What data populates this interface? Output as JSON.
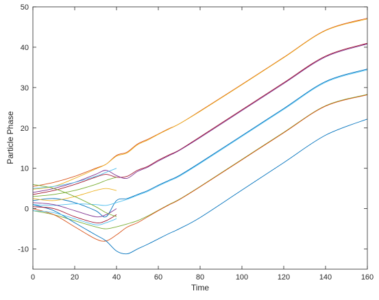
{
  "chart_data": {
    "type": "line",
    "title": "",
    "xlabel": "Time",
    "ylabel": "Particle Phase",
    "xlim": [
      0,
      160
    ],
    "ylim": [
      -15,
      50
    ],
    "xticks": [
      0,
      20,
      40,
      60,
      80,
      100,
      120,
      140,
      160
    ],
    "yticks": [
      -10,
      0,
      10,
      20,
      30,
      40,
      50
    ],
    "grid": false,
    "legend": "none",
    "colors": [
      "#0072bd",
      "#d95319",
      "#edb120",
      "#7e2f8e",
      "#77ac30",
      "#4dbeee",
      "#a2142f"
    ],
    "series": [
      {
        "color": "#d95319",
        "x": [
          0,
          10,
          20,
          30,
          35,
          40,
          45,
          50,
          55,
          60,
          65,
          70,
          80,
          100,
          120,
          140,
          160
        ],
        "y": [
          5.5,
          6.5,
          8,
          10,
          11,
          13.2,
          14,
          16,
          17.2,
          18.5,
          19.8,
          21,
          24.2,
          30.8,
          37.5,
          44.2,
          47.2
        ]
      },
      {
        "color": "#edb120",
        "x": [
          0,
          10,
          20,
          30,
          35,
          40,
          45,
          50,
          55,
          60,
          65,
          70,
          80,
          100,
          120,
          140,
          160
        ],
        "y": [
          4.8,
          5.5,
          7.5,
          9.8,
          11,
          13,
          13.8,
          15.8,
          17,
          18.4,
          19.7,
          21,
          24.1,
          30.7,
          37.4,
          44.1,
          47
        ]
      },
      {
        "color": "#a2142f",
        "x": [
          0,
          10,
          20,
          30,
          35,
          40,
          45,
          50,
          55,
          60,
          65,
          70,
          80,
          100,
          120,
          140,
          160
        ],
        "y": [
          3.5,
          4.5,
          6,
          7.8,
          8.5,
          7.8,
          8,
          9.5,
          10.5,
          12,
          13.3,
          14.5,
          17.8,
          24.5,
          31.2,
          37.8,
          41
        ]
      },
      {
        "color": "#7e2f8e",
        "x": [
          0,
          10,
          20,
          30,
          35,
          40,
          45,
          50,
          55,
          60,
          65,
          70,
          80,
          100,
          120,
          140,
          160
        ],
        "y": [
          4,
          5,
          6.5,
          8.5,
          9.5,
          8.2,
          7.5,
          9.2,
          10.3,
          11.8,
          13.1,
          14.4,
          17.6,
          24.3,
          31,
          37.6,
          40.8
        ]
      },
      {
        "color": "#0072bd",
        "x": [
          0,
          10,
          20,
          30,
          35,
          40,
          45,
          50,
          55,
          60,
          65,
          70,
          80,
          100,
          120,
          140,
          160
        ],
        "y": [
          2,
          2.5,
          1.5,
          -0.5,
          -2,
          2,
          2.5,
          3.5,
          4.5,
          5.8,
          7,
          8.2,
          11.4,
          18.1,
          24.8,
          31.5,
          34.6
        ]
      },
      {
        "color": "#4dbeee",
        "x": [
          0,
          10,
          20,
          30,
          35,
          40,
          45,
          50,
          55,
          60,
          65,
          70,
          80,
          100,
          120,
          140,
          160
        ],
        "y": [
          1,
          0.8,
          1.2,
          1,
          0.8,
          1.5,
          2.3,
          3.3,
          4.3,
          5.6,
          6.8,
          8,
          11.2,
          17.9,
          24.6,
          31.3,
          34.4
        ]
      },
      {
        "color": "#77ac30",
        "x": [
          0,
          10,
          20,
          30,
          35,
          40,
          45,
          50,
          55,
          60,
          65,
          70,
          80,
          100,
          120,
          140,
          160
        ],
        "y": [
          -0.5,
          -1.5,
          -3,
          -4.5,
          -5,
          -4.5,
          -3.8,
          -3,
          -1.8,
          -0.4,
          1,
          2.3,
          5.5,
          12.2,
          18.9,
          25.5,
          28.3
        ]
      },
      {
        "color": "#d95319",
        "x": [
          0,
          10,
          20,
          30,
          35,
          40,
          45,
          50,
          55,
          60,
          65,
          70,
          80,
          100,
          120,
          140,
          160
        ],
        "y": [
          0,
          -1.5,
          -4.5,
          -7.5,
          -8,
          -6.5,
          -4.6,
          -3.5,
          -2,
          -0.5,
          0.9,
          2.2,
          5.4,
          12.1,
          18.8,
          25.4,
          28.2
        ]
      },
      {
        "color": "#0072bd",
        "x": [
          0,
          10,
          20,
          30,
          35,
          40,
          45,
          50,
          55,
          60,
          65,
          70,
          80,
          100,
          120,
          140,
          160
        ],
        "y": [
          1,
          -0.5,
          -3.5,
          -6.5,
          -8,
          -10.5,
          -11.2,
          -10,
          -8.8,
          -7.5,
          -6.2,
          -5,
          -2.2,
          4.6,
          11.4,
          18.2,
          22.2
        ]
      },
      {
        "color": "#4dbeee",
        "x": [
          0,
          10,
          20,
          30,
          35,
          40
        ],
        "y": [
          5,
          5.5,
          6.5,
          8,
          9,
          10
        ]
      },
      {
        "color": "#77ac30",
        "x": [
          0,
          10,
          20,
          30,
          35,
          40
        ],
        "y": [
          3,
          3.5,
          4.5,
          6,
          7,
          7.8
        ]
      },
      {
        "color": "#edb120",
        "x": [
          0,
          10,
          20,
          30,
          35,
          40
        ],
        "y": [
          2.5,
          2,
          3,
          4.5,
          5,
          4.5
        ]
      },
      {
        "color": "#7e2f8e",
        "x": [
          0,
          10,
          20,
          30,
          35,
          40
        ],
        "y": [
          1.5,
          1,
          -0.5,
          -2,
          -1.5,
          0
        ]
      },
      {
        "color": "#a2142f",
        "x": [
          0,
          10,
          20,
          30,
          35,
          40
        ],
        "y": [
          0.5,
          0,
          -2,
          -3.5,
          -3,
          -1.5
        ]
      },
      {
        "color": "#4dbeee",
        "x": [
          0,
          10,
          20,
          30,
          35,
          40
        ],
        "y": [
          -0.5,
          -1,
          -2.5,
          -4,
          -3.5,
          -2.5
        ]
      },
      {
        "color": "#77ac30",
        "x": [
          0,
          10,
          20,
          30,
          35,
          40
        ],
        "y": [
          6,
          5,
          3,
          0.5,
          -1,
          -2
        ]
      }
    ]
  }
}
